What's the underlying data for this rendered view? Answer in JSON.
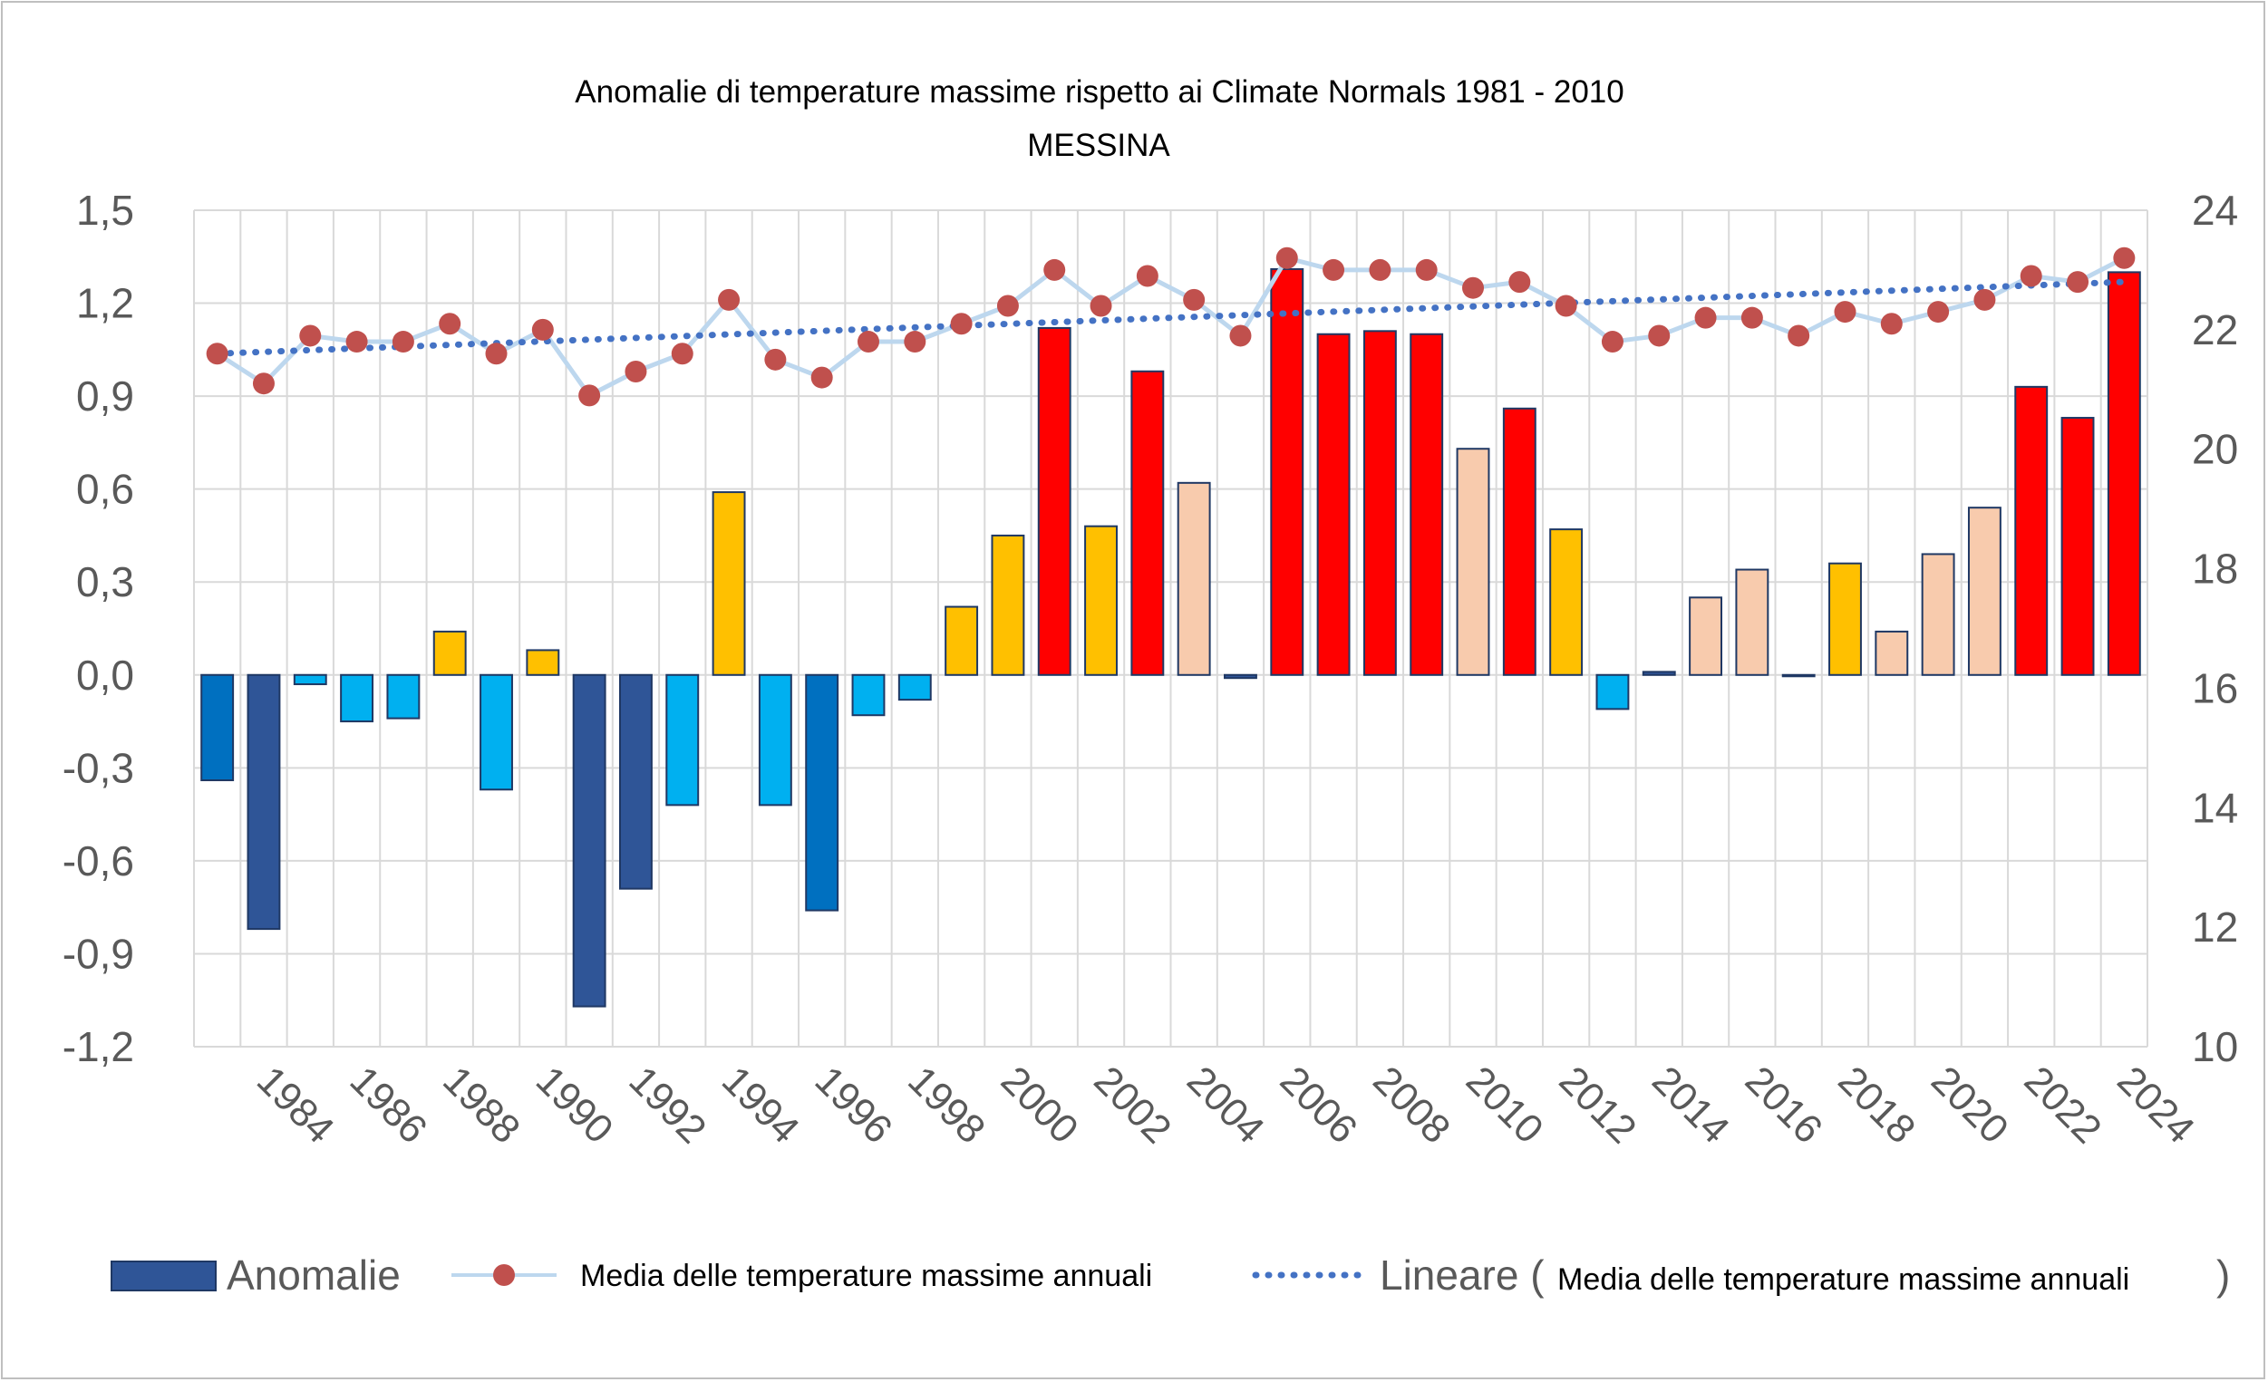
{
  "chart_data": {
    "type": "bar",
    "title": "Anomalie di temperature massime rispetto ai Climate Normals  1981 - 2010",
    "subtitle": "MESSINA",
    "xlabel": "",
    "ylabel_left": "",
    "ylabel_right": "",
    "years": [
      1983,
      1984,
      1985,
      1986,
      1987,
      1988,
      1989,
      1990,
      1991,
      1992,
      1993,
      1994,
      1995,
      1996,
      1997,
      1998,
      1999,
      2000,
      2001,
      2002,
      2003,
      2004,
      2005,
      2006,
      2007,
      2008,
      2009,
      2010,
      2011,
      2012,
      2013,
      2014,
      2015,
      2016,
      2017,
      2018,
      2019,
      2020,
      2021,
      2022,
      2023,
      2024
    ],
    "x_tick_labels": [
      "1984",
      "1986",
      "1988",
      "1990",
      "1992",
      "1994",
      "1996",
      "1998",
      "2000",
      "2002",
      "2004",
      "2006",
      "2008",
      "2010",
      "2012",
      "2014",
      "2016",
      "2018",
      "2020",
      "2022",
      "2024"
    ],
    "y_left_ticks": [
      "1,5",
      "1,2",
      "0,9",
      "0,6",
      "0,3",
      "0,0",
      "-0,3",
      "-0,6",
      "-0,9",
      "-1,2"
    ],
    "y_left_range": [
      -1.2,
      1.5
    ],
    "y_right_ticks": [
      "24",
      "22",
      "20",
      "18",
      "16",
      "14",
      "12",
      "10"
    ],
    "y_right_range": [
      10,
      24
    ],
    "grid": true,
    "legend_position": "bottom",
    "series": [
      {
        "name": "Anomalie",
        "type": "bar",
        "axis": "left",
        "values": [
          -0.34,
          -0.82,
          -0.03,
          -0.15,
          -0.14,
          0.14,
          -0.37,
          0.08,
          -1.07,
          -0.69,
          -0.42,
          0.59,
          -0.42,
          -0.76,
          -0.13,
          -0.08,
          0.22,
          0.45,
          1.12,
          0.48,
          0.98,
          0.62,
          -0.01,
          1.31,
          1.1,
          1.11,
          1.1,
          0.73,
          0.86,
          0.47,
          -0.11,
          0.01,
          0.25,
          0.34,
          0.0,
          0.36,
          0.14,
          0.39,
          0.54,
          0.93,
          0.83,
          1.3
        ],
        "colors": [
          "#0070c0",
          "#2f5597",
          "#00b0f0",
          "#00b0f0",
          "#00b0f0",
          "#ffc000",
          "#00b0f0",
          "#ffc000",
          "#2f5597",
          "#2f5597",
          "#00b0f0",
          "#ffc000",
          "#00b0f0",
          "#0070c0",
          "#00b0f0",
          "#00b0f0",
          "#ffc000",
          "#ffc000",
          "#ff0000",
          "#ffc000",
          "#ff0000",
          "#f8cbad",
          "#2f5597",
          "#ff0000",
          "#ff0000",
          "#ff0000",
          "#ff0000",
          "#f8cbad",
          "#ff0000",
          "#ffc000",
          "#00b0f0",
          "#2f5597",
          "#f8cbad",
          "#f8cbad",
          "#ffffff",
          "#ffc000",
          "#f8cbad",
          "#f8cbad",
          "#f8cbad",
          "#ff0000",
          "#ff0000",
          "#ff0000"
        ]
      },
      {
        "name": "Media delle temperature massime annuali",
        "type": "line",
        "axis": "right",
        "values": [
          21.6,
          21.1,
          21.9,
          21.8,
          21.8,
          22.1,
          21.6,
          22.0,
          20.9,
          21.3,
          21.6,
          22.5,
          21.5,
          21.2,
          21.8,
          21.8,
          22.1,
          22.4,
          23.0,
          22.4,
          22.9,
          22.5,
          21.9,
          23.2,
          23.0,
          23.0,
          23.0,
          22.7,
          22.8,
          22.4,
          21.8,
          21.9,
          22.2,
          22.2,
          21.9,
          22.3,
          22.1,
          22.3,
          22.5,
          22.9,
          22.8,
          23.2
        ]
      },
      {
        "name": "Lineare (",
        "name_suffix": " Media delle temperature massime annuali",
        "closing": ")",
        "type": "trendline",
        "axis": "right",
        "start": 21.6,
        "end": 22.8
      }
    ]
  },
  "colors": {
    "anomaly_legend": "#2f5597",
    "line": "#bdd7ee",
    "marker": "#c0504d",
    "trend": "#4472c4",
    "grid": "#d9d9d9",
    "bar_outline": "#1f3864"
  }
}
